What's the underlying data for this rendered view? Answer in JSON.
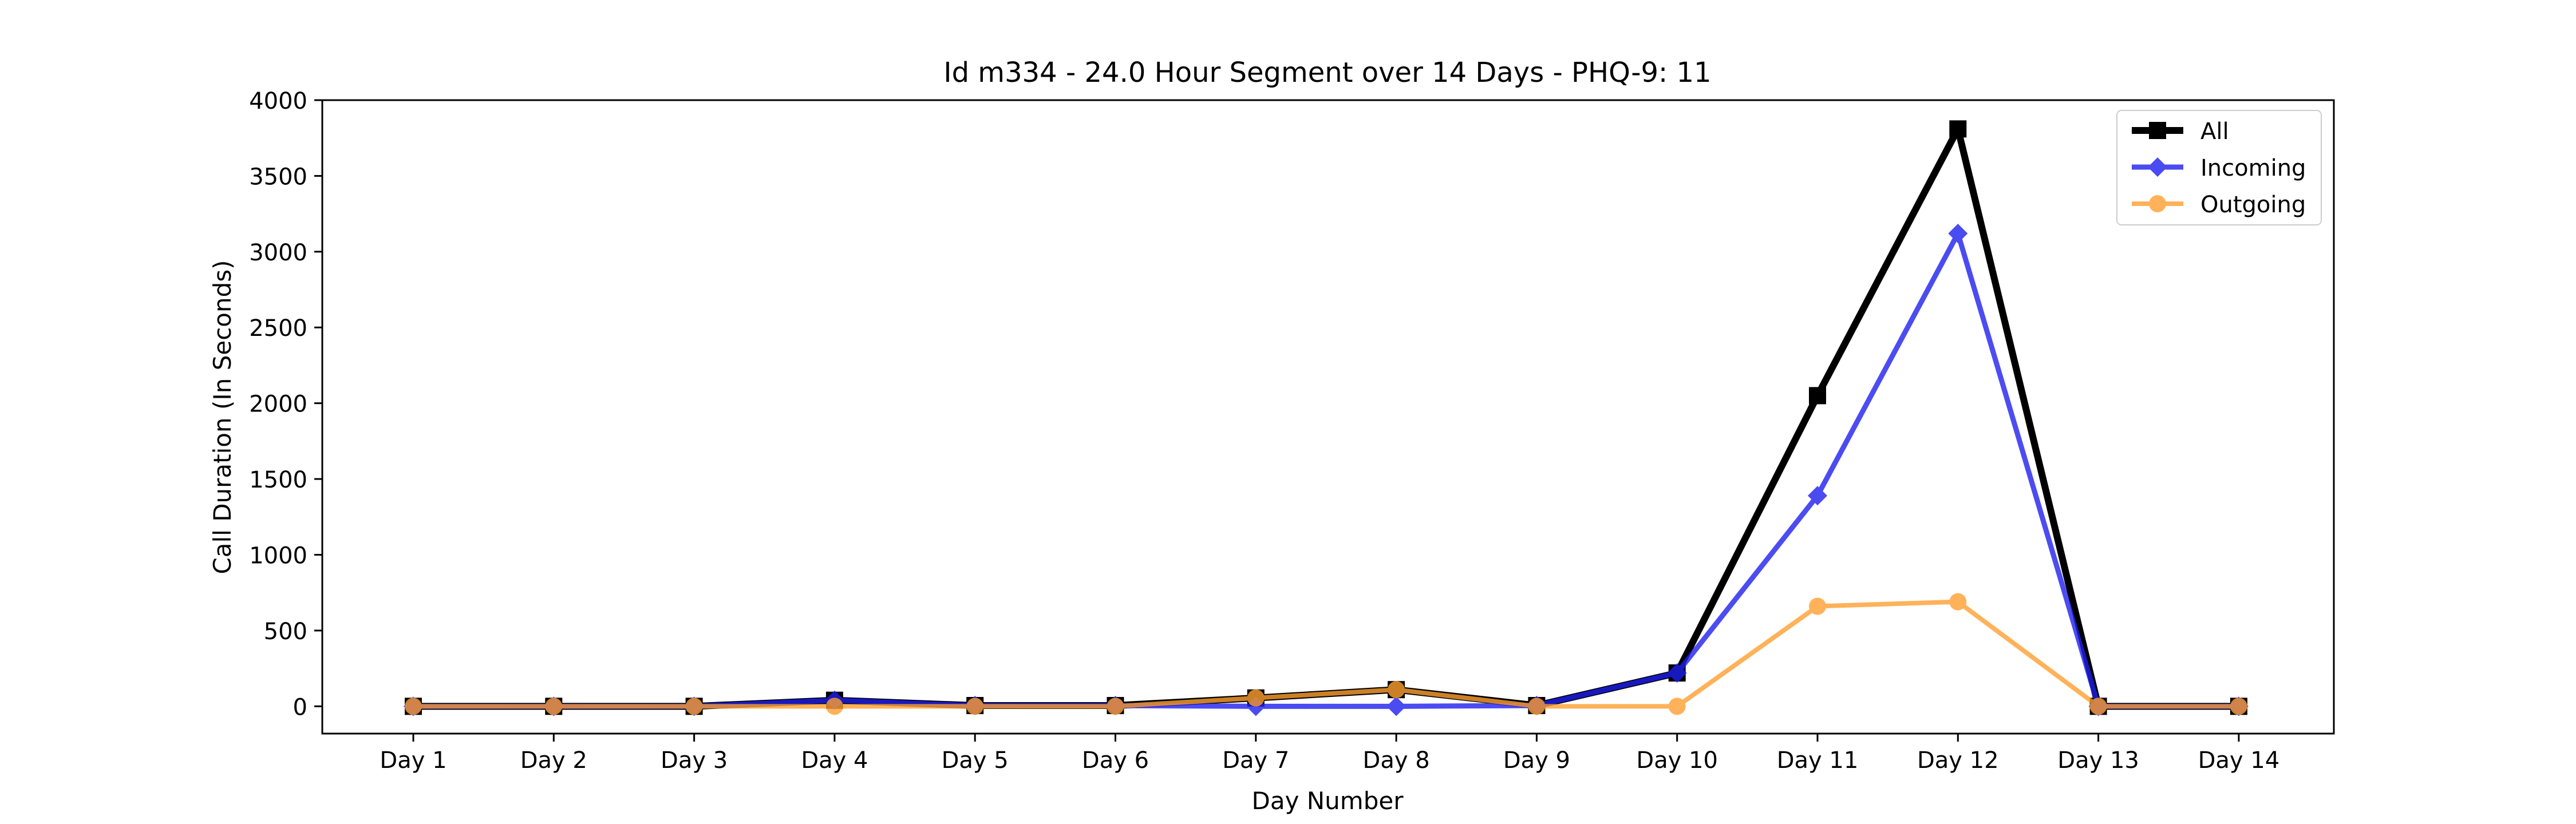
{
  "chart_data": {
    "type": "line",
    "title": "Id m334 - 24.0 Hour Segment over 14 Days - PHQ-9: 11",
    "xlabel": "Day Number",
    "ylabel": "Call Duration (In Seconds)",
    "categories": [
      "Day 1",
      "Day 2",
      "Day 3",
      "Day 4",
      "Day 5",
      "Day 6",
      "Day 7",
      "Day 8",
      "Day 9",
      "Day 10",
      "Day 11",
      "Day 12",
      "Day 13",
      "Day 14"
    ],
    "ylim": [
      -180,
      4000
    ],
    "yticks": [
      0,
      500,
      1000,
      1500,
      2000,
      2500,
      3000,
      3500,
      4000
    ],
    "grid": false,
    "legend_position": "top-right",
    "series": [
      {
        "name": "All",
        "color": "#000000",
        "marker": "square",
        "values": [
          0,
          0,
          0,
          40,
          5,
          5,
          55,
          110,
          5,
          220,
          2050,
          3810,
          0,
          0
        ]
      },
      {
        "name": "Incoming",
        "color": "#1f1fef",
        "marker": "diamond",
        "values": [
          0,
          0,
          0,
          40,
          5,
          5,
          0,
          0,
          5,
          220,
          1390,
          3120,
          0,
          0
        ]
      },
      {
        "name": "Outgoing",
        "color": "#ffa030",
        "marker": "circle",
        "values": [
          0,
          0,
          0,
          0,
          0,
          0,
          55,
          110,
          0,
          0,
          660,
          690,
          0,
          0
        ]
      }
    ]
  }
}
